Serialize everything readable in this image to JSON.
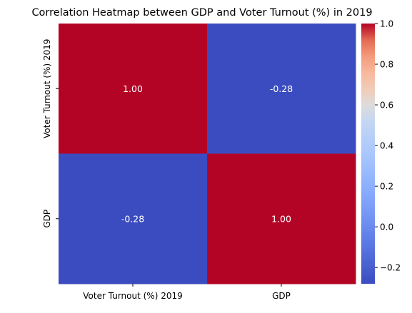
{
  "chart_data": {
    "type": "heatmap",
    "title": "Correlation Heatmap between GDP and Voter Turnout (%) in 2019",
    "x_categories": [
      "Voter Turnout (%) 2019",
      "GDP"
    ],
    "y_categories": [
      "Voter Turnout (%) 2019",
      "GDP"
    ],
    "matrix": [
      [
        1.0,
        -0.28
      ],
      [
        -0.28,
        1.0
      ]
    ],
    "cell_labels": [
      [
        "1.00",
        "-0.28"
      ],
      [
        "-0.28",
        "1.00"
      ]
    ],
    "colormap": "coolwarm",
    "vmin": -0.28,
    "vmax": 1.0,
    "colorbar_ticks": [
      -0.2,
      0.0,
      0.2,
      0.4,
      0.6,
      0.8,
      1.0
    ],
    "colorbar_tick_labels": [
      "−0.2",
      "0.0",
      "0.2",
      "0.4",
      "0.6",
      "0.8",
      "1.0"
    ],
    "low_color": "#3b4cc0",
    "high_color": "#b40426"
  }
}
